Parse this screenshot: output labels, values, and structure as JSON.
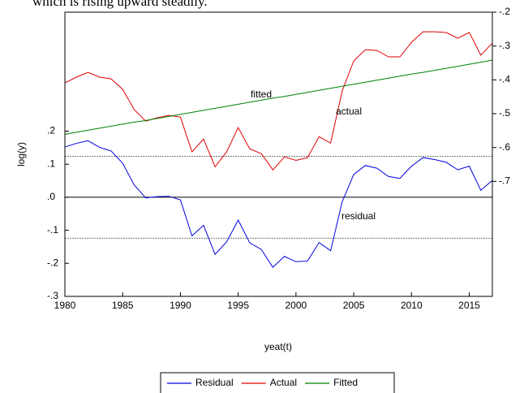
{
  "chart_data": {
    "type": "line",
    "caption": "which is rising upward steadily.",
    "y_label": "log(y)",
    "x_label": "yeat(t)",
    "annotations": [
      "fitted",
      "actual",
      "residual"
    ],
    "x": [
      1980,
      1981,
      1982,
      1983,
      1984,
      1985,
      1986,
      1987,
      1988,
      1989,
      1990,
      1991,
      1992,
      1993,
      1994,
      1995,
      1996,
      1997,
      1998,
      1999,
      2000,
      2001,
      2002,
      2003,
      2004,
      2005,
      2006,
      2007,
      2008,
      2009,
      2010,
      2011,
      2012,
      2013,
      2014,
      2015,
      2016,
      2017
    ],
    "xlim": [
      1980,
      2017
    ],
    "xticks": [
      1980,
      1985,
      1990,
      1995,
      2000,
      2005,
      2010,
      2015
    ],
    "ylim": [
      -0.3,
      0.56
    ],
    "yticks": [
      {
        "value": -0.3,
        "label": "-.3"
      },
      {
        "value": -0.2,
        "label": "-.2"
      },
      {
        "value": -0.1,
        "label": "-.1"
      },
      {
        "value": 0,
        "label": ".0"
      },
      {
        "value": 0.1,
        "label": ".1"
      },
      {
        "value": 0.2,
        "label": ".2"
      }
    ],
    "y2lim": [
      -1.04,
      -0.2
    ],
    "y2ticks": [
      {
        "value": -0.7,
        "label": "-.7"
      },
      {
        "value": -0.6,
        "label": "-.6"
      },
      {
        "value": -0.5,
        "label": "-.5"
      },
      {
        "value": -0.4,
        "label": "-.4"
      },
      {
        "value": -0.3,
        "label": "-.3"
      },
      {
        "value": -0.2,
        "label": "-.2"
      }
    ],
    "reference_lines": [
      0.124,
      -0.124
    ],
    "zero_line": 0,
    "series": [
      {
        "name": "Residual",
        "color": "#0000e0",
        "axis": "y",
        "values": [
          0.152,
          0.163,
          0.171,
          0.151,
          0.14,
          0.103,
          0.037,
          -0.002,
          0.002,
          0.003,
          -0.008,
          -0.117,
          -0.085,
          -0.173,
          -0.135,
          -0.069,
          -0.138,
          -0.158,
          -0.212,
          -0.179,
          -0.195,
          -0.193,
          -0.137,
          -0.162,
          -0.014,
          0.069,
          0.096,
          0.088,
          0.063,
          0.057,
          0.094,
          0.12,
          0.114,
          0.106,
          0.083,
          0.094,
          0.021,
          0.051
        ]
      },
      {
        "name": "Actual",
        "color": "#e00000",
        "axis": "y2",
        "values": [
          -0.409,
          -0.392,
          -0.378,
          -0.392,
          -0.397,
          -0.428,
          -0.488,
          -0.522,
          -0.512,
          -0.505,
          -0.51,
          -0.613,
          -0.575,
          -0.657,
          -0.613,
          -0.541,
          -0.604,
          -0.618,
          -0.666,
          -0.628,
          -0.638,
          -0.63,
          -0.568,
          -0.587,
          -0.433,
          -0.344,
          -0.311,
          -0.313,
          -0.332,
          -0.332,
          -0.289,
          -0.258,
          -0.258,
          -0.26,
          -0.277,
          -0.26,
          -0.327,
          -0.291
        ]
      },
      {
        "name": "Fitted",
        "color": "#008000",
        "axis": "y2",
        "values": [
          -0.561,
          -0.555,
          -0.549,
          -0.543,
          -0.537,
          -0.531,
          -0.525,
          -0.52,
          -0.514,
          -0.508,
          -0.502,
          -0.496,
          -0.49,
          -0.484,
          -0.478,
          -0.472,
          -0.466,
          -0.46,
          -0.454,
          -0.449,
          -0.443,
          -0.437,
          -0.431,
          -0.425,
          -0.419,
          -0.413,
          -0.407,
          -0.401,
          -0.395,
          -0.389,
          -0.383,
          -0.378,
          -0.372,
          -0.366,
          -0.36,
          -0.354,
          -0.348,
          -0.342
        ]
      }
    ]
  }
}
